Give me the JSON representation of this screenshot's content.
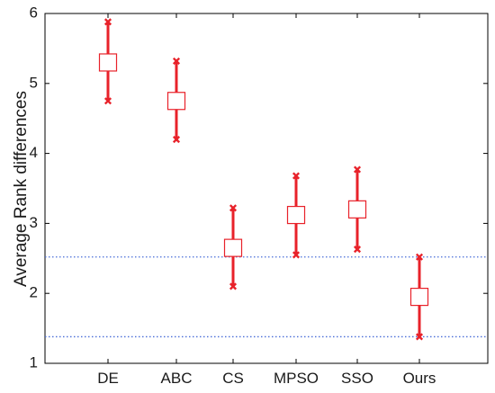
{
  "chart_data": {
    "type": "errorbar",
    "title": "",
    "xlabel": "",
    "ylabel": "Average Rank differences",
    "ylim": [
      1,
      6
    ],
    "yticks": [
      1,
      2,
      3,
      4,
      5,
      6
    ],
    "grid": false,
    "legend": "none",
    "categories": [
      "DE",
      "ABC",
      "CS",
      "MPSO",
      "SSO",
      "Ours"
    ],
    "means": [
      5.3,
      4.75,
      2.65,
      3.12,
      3.2,
      1.95
    ],
    "lower": [
      4.75,
      4.2,
      2.1,
      2.55,
      2.63,
      1.38
    ],
    "upper": [
      5.88,
      5.32,
      3.22,
      3.68,
      3.77,
      2.52
    ],
    "reference_lines": [
      2.52,
      1.38
    ],
    "colors": {
      "errorbar": "#e8222a",
      "reference_line": "#4a6ed8",
      "axis": "#000000"
    }
  }
}
